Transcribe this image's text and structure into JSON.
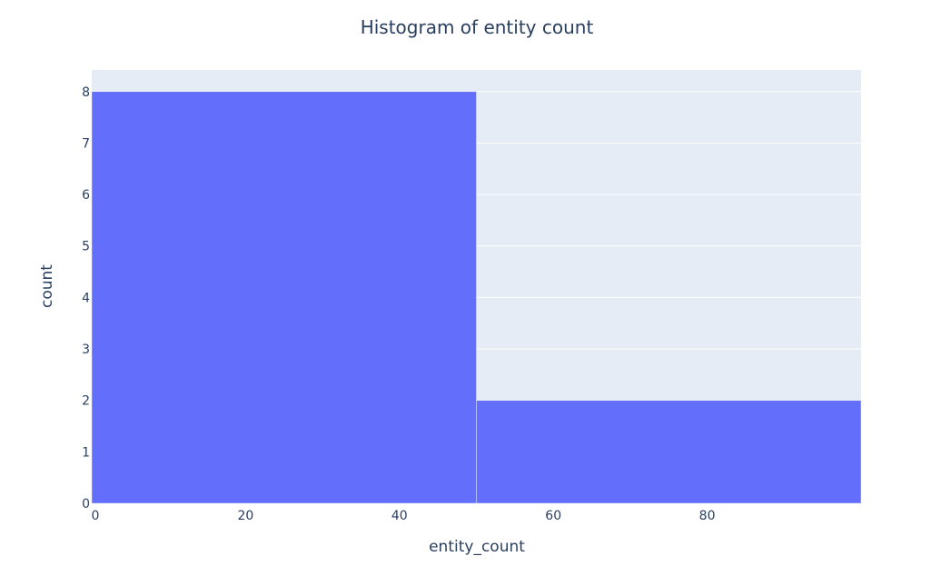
{
  "chart_data": {
    "type": "bar",
    "subtype": "histogram",
    "title": "Histogram of entity count",
    "xlabel": "entity_count",
    "ylabel": "count",
    "bins": [
      {
        "start": 0,
        "end": 50,
        "count": 8
      },
      {
        "start": 50,
        "end": 100,
        "count": 2
      }
    ],
    "xlim": [
      0,
      100
    ],
    "ylim": [
      0,
      8.42
    ],
    "x_ticks": [
      0,
      20,
      40,
      60,
      80
    ],
    "y_ticks": [
      0,
      1,
      2,
      3,
      4,
      5,
      6,
      7,
      8
    ],
    "grid": "horizontal",
    "legend": "none",
    "colors": {
      "bar": "#636efa",
      "plot_bg": "#e5ecf6",
      "grid": "#ffffff",
      "text": "#2a3f5f"
    }
  }
}
